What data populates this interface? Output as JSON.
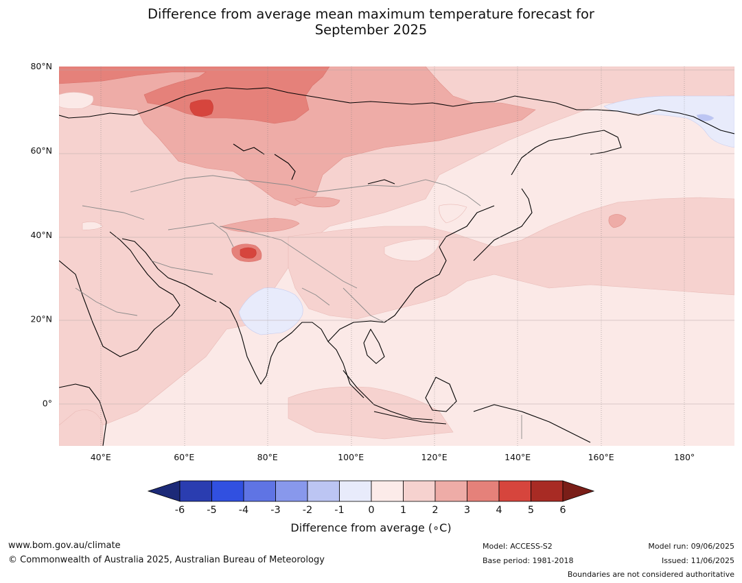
{
  "title_line1": "Difference from average mean maximum temperature forecast for",
  "title_line2": "September 2025",
  "map": {
    "lon_range": [
      30,
      192
    ],
    "lat_range": [
      -10,
      80
    ],
    "lat_labels": [
      {
        "lat": 80,
        "label": "80°N"
      },
      {
        "lat": 60,
        "label": "60°N"
      },
      {
        "lat": 40,
        "label": "40°N"
      },
      {
        "lat": 20,
        "label": "20°N"
      },
      {
        "lat": 0,
        "label": "0°"
      }
    ],
    "lon_labels": [
      {
        "lon": 40,
        "label": "40°E"
      },
      {
        "lon": 60,
        "label": "60°E"
      },
      {
        "lon": 80,
        "label": "80°E"
      },
      {
        "lon": 100,
        "label": "100°E"
      },
      {
        "lon": 120,
        "label": "120°E"
      },
      {
        "lon": 140,
        "label": "140°E"
      },
      {
        "lon": 160,
        "label": "160°E"
      },
      {
        "lon": 180,
        "label": "180°"
      }
    ],
    "background_anomaly_color": "#fbe9e7"
  },
  "colorbar": {
    "ticks": [
      "-6",
      "-5",
      "-4",
      "-3",
      "-2",
      "-1",
      "0",
      "1",
      "2",
      "3",
      "4",
      "5",
      "6"
    ],
    "colors": [
      "#2a3db0",
      "#3150e0",
      "#5f74e4",
      "#8898ec",
      "#bcc5f3",
      "#e8ebfb",
      "#fcebe9",
      "#f6d2cf",
      "#eeaca7",
      "#e5817a",
      "#d6453d",
      "#a82b24"
    ],
    "under_color": "#1c2a78",
    "over_color": "#7a1e18",
    "label": "Difference from average (∘C)"
  },
  "footer": {
    "website": "www.bom.gov.au/climate",
    "copyright": "© Commonwealth of Australia 2025, Australian Bureau of Meteorology",
    "model": "Model: ACCESS-S2",
    "base_period": "Base period: 1981-2018",
    "model_run": "Model run: 09/06/2025",
    "issued": "Issued: 11/06/2025",
    "disclaimer": "Boundaries are not considered authoritative"
  }
}
